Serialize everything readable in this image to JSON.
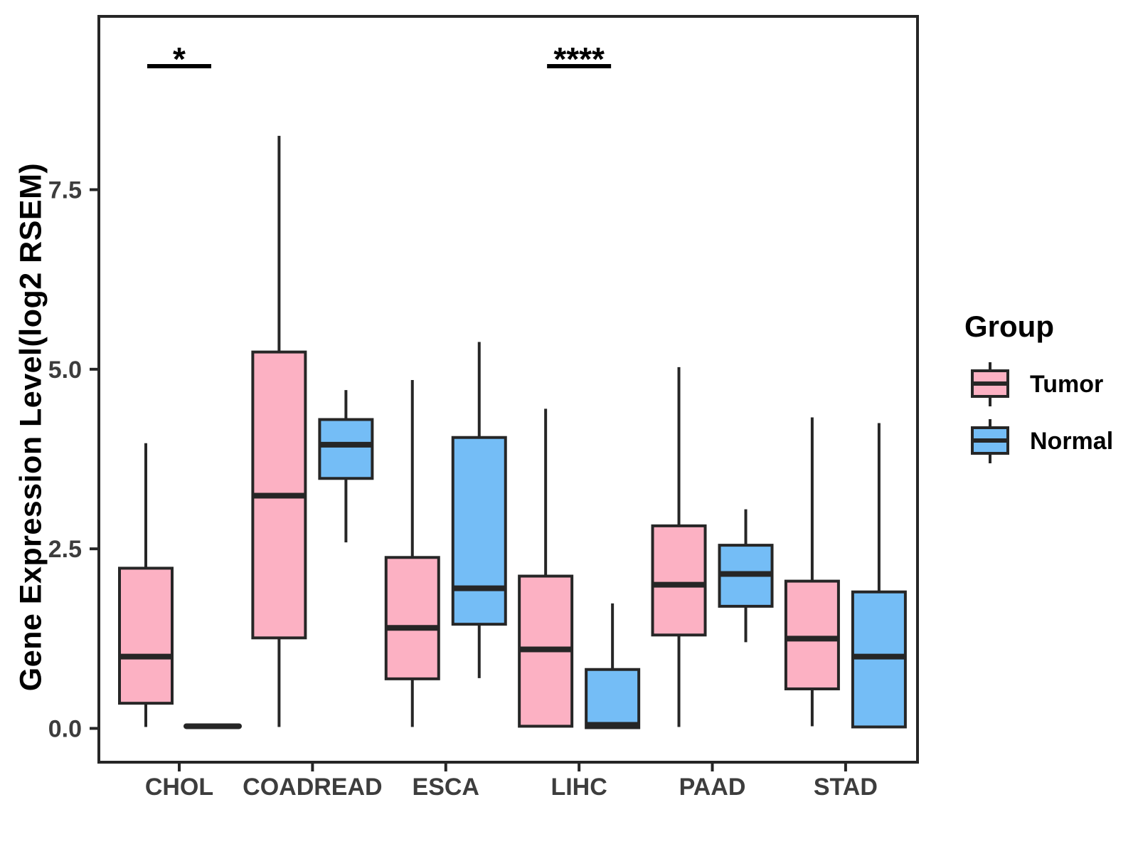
{
  "chart_data": {
    "type": "boxplot",
    "title": "",
    "xlabel": "",
    "ylabel": "Gene Expression Level(log2 RSEM)",
    "categories": [
      "CHOL",
      "COADREAD",
      "ESCA",
      "LIHC",
      "PAAD",
      "STAD"
    ],
    "y_axis": {
      "ticks": [
        0.0,
        2.5,
        5.0,
        7.5
      ],
      "tick_labels": [
        "0.0",
        "2.5",
        "5.0",
        "7.5"
      ],
      "range": [
        -0.5,
        9.9
      ],
      "grid": false
    },
    "legend": {
      "title": "Group",
      "position": "right"
    },
    "series": [
      {
        "name": "Tumor",
        "color": "#FCB1C3",
        "boxes": [
          {
            "category": "CHOL",
            "min": 0.02,
            "q1": 0.35,
            "median": 1.0,
            "q3": 2.23,
            "max": 3.97
          },
          {
            "category": "COADREAD",
            "min": 0.02,
            "q1": 1.26,
            "median": 3.24,
            "q3": 5.24,
            "max": 8.25
          },
          {
            "category": "ESCA",
            "min": 0.02,
            "q1": 0.69,
            "median": 1.4,
            "q3": 2.38,
            "max": 4.85
          },
          {
            "category": "LIHC",
            "min": 0.02,
            "q1": 0.03,
            "median": 1.1,
            "q3": 2.12,
            "max": 4.45
          },
          {
            "category": "PAAD",
            "min": 0.02,
            "q1": 1.3,
            "median": 2.0,
            "q3": 2.82,
            "max": 5.03
          },
          {
            "category": "STAD",
            "min": 0.03,
            "q1": 0.55,
            "median": 1.25,
            "q3": 2.05,
            "max": 4.33
          }
        ]
      },
      {
        "name": "Normal",
        "color": "#74BDF6",
        "boxes": [
          {
            "category": "CHOL",
            "min": 0.02,
            "q1": 0.02,
            "median": 0.03,
            "q3": 0.04,
            "max": 0.04
          },
          {
            "category": "COADREAD",
            "min": 2.59,
            "q1": 3.48,
            "median": 3.95,
            "q3": 4.3,
            "max": 4.71
          },
          {
            "category": "ESCA",
            "min": 0.7,
            "q1": 1.45,
            "median": 1.95,
            "q3": 4.05,
            "max": 5.38
          },
          {
            "category": "LIHC",
            "min": 0.0,
            "q1": 0.01,
            "median": 0.05,
            "q3": 0.82,
            "max": 1.74
          },
          {
            "category": "PAAD",
            "min": 1.2,
            "q1": 1.7,
            "median": 2.15,
            "q3": 2.55,
            "max": 3.05
          },
          {
            "category": "STAD",
            "min": 0.0,
            "q1": 0.02,
            "median": 1.0,
            "q3": 1.9,
            "max": 4.25
          }
        ]
      }
    ],
    "annotations": [
      {
        "category": "CHOL",
        "label": "*"
      },
      {
        "category": "LIHC",
        "label": "****"
      }
    ],
    "stroke_color": "#262626",
    "axis_text_color": "#3D3D3D"
  }
}
